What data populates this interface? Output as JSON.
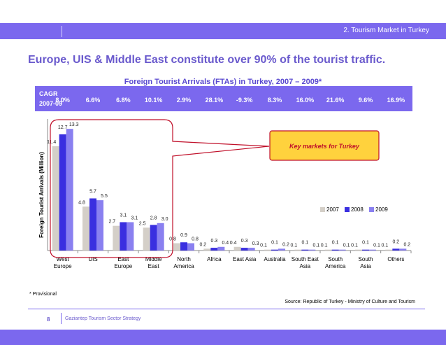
{
  "header": {
    "section_label": "2. Tourism Market in Turkey",
    "headline": "Europe, UIS & Middle East constitute over 90% of the tourist traffic."
  },
  "cagr": {
    "label_line1": "CAGR",
    "label_line2": "2007-09",
    "values": [
      "8.0%",
      "6.6%",
      "6.8%",
      "10.1%",
      "2.9%",
      "28.1%",
      "-9.3%",
      "8.3%",
      "16.0%",
      "21.6%",
      "9.6%",
      "16.9%"
    ]
  },
  "callout": {
    "text": "Key markets for Turkey"
  },
  "footer": {
    "footnote": "* Provisional",
    "source": "Source: Republic of Turkey - Ministry of Culture and Tourism",
    "page": "8",
    "doc_title": "Gaziantep Tourism Sector Strategy"
  },
  "chart_data": {
    "type": "bar",
    "title": "Foreign Tourist Arrivals (FTAs) in Turkey, 2007 – 2009*",
    "ylabel": "Foreign Tourist Arrivals (Million)",
    "xlabel": "",
    "ylim": [
      0,
      14
    ],
    "legend_position": "right",
    "categories": [
      "West Europe",
      "UIS",
      "East Europe",
      "Middle East",
      "North America",
      "Africa",
      "East Asia",
      "Australia",
      "South East Asia",
      "South America",
      "South Asia",
      "Others"
    ],
    "series": [
      {
        "name": "2007",
        "color": "#d4cfc8",
        "values": [
          11.4,
          4.8,
          2.7,
          2.5,
          0.8,
          0.2,
          0.4,
          0.1,
          0.1,
          0.1,
          0.1,
          0.1
        ]
      },
      {
        "name": "2008",
        "color": "#3a2fe0",
        "values": [
          12.7,
          5.7,
          3.1,
          2.8,
          0.9,
          0.3,
          0.3,
          0.1,
          0.1,
          0.1,
          0.1,
          0.2
        ]
      },
      {
        "name": "2009",
        "color": "#8a80f0",
        "values": [
          13.3,
          5.5,
          3.1,
          3.0,
          0.8,
          0.4,
          0.3,
          0.2,
          0.1,
          0.1,
          0.1,
          0.2
        ]
      }
    ]
  }
}
